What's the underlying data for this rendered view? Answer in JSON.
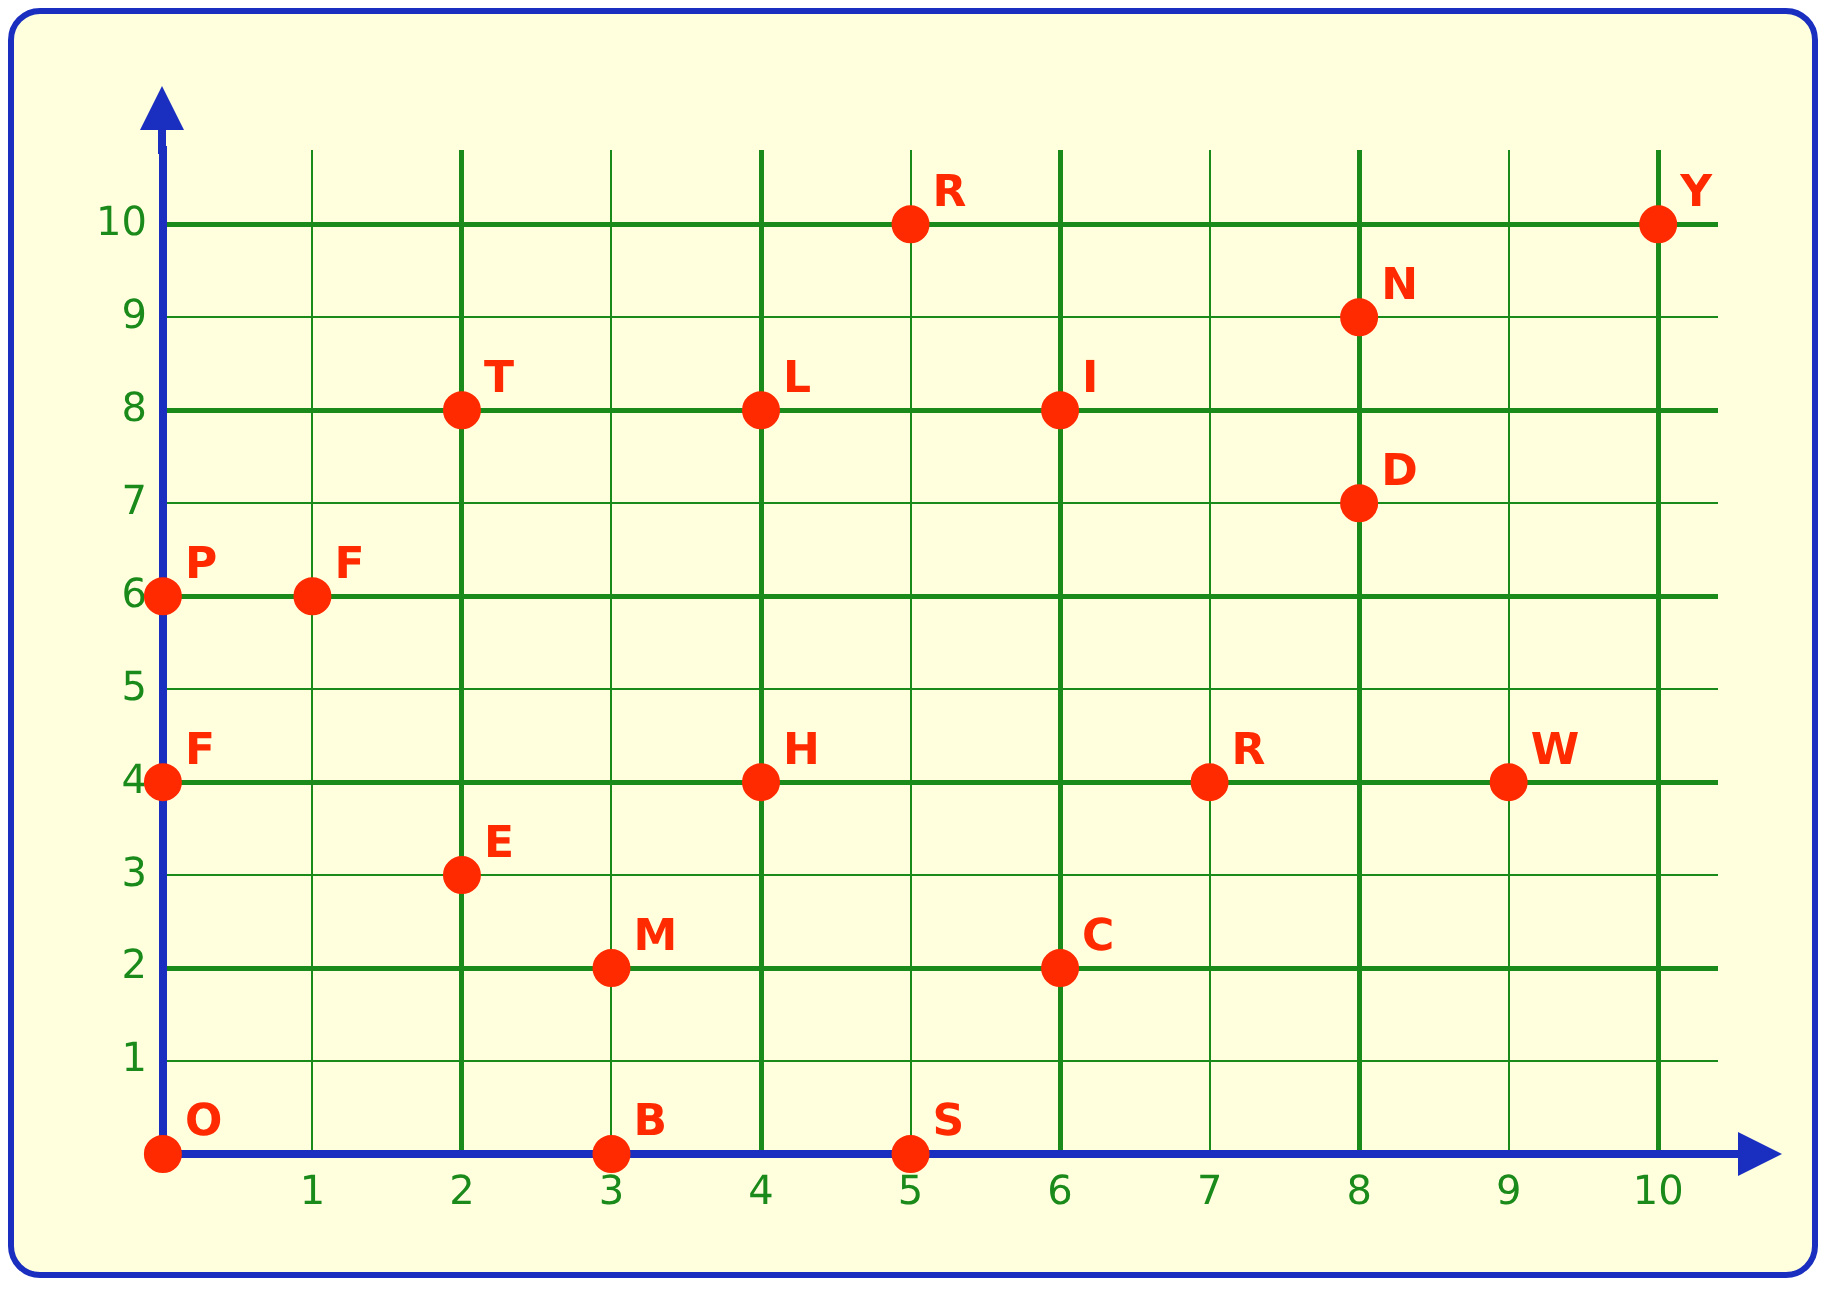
{
  "chart_data": {
    "type": "scatter",
    "x": [
      0,
      3,
      5,
      3,
      6,
      2,
      0,
      4,
      7,
      9,
      0,
      1,
      8,
      2,
      4,
      6,
      8,
      5,
      10
    ],
    "values": [
      0,
      0,
      0,
      2,
      2,
      3,
      4,
      4,
      4,
      4,
      6,
      6,
      7,
      8,
      8,
      8,
      9,
      10,
      10
    ],
    "color": "#ff2a00",
    "marker": "circle",
    "grid": true,
    "legend": false,
    "xlim": [
      0,
      10.4
    ],
    "ylim": [
      0,
      10.8
    ],
    "xticks": [
      1,
      2,
      3,
      4,
      5,
      6,
      7,
      8,
      9,
      10
    ],
    "yticks": [
      1,
      2,
      3,
      4,
      5,
      6,
      7,
      8,
      9,
      10
    ],
    "annotations": [
      {
        "text": "O",
        "x": 0,
        "y": 0
      },
      {
        "text": "B",
        "x": 3,
        "y": 0
      },
      {
        "text": "S",
        "x": 5,
        "y": 0
      },
      {
        "text": "M",
        "x": 3,
        "y": 2
      },
      {
        "text": "C",
        "x": 6,
        "y": 2
      },
      {
        "text": "E",
        "x": 2,
        "y": 3
      },
      {
        "text": "F",
        "x": 0,
        "y": 4
      },
      {
        "text": "H",
        "x": 4,
        "y": 4
      },
      {
        "text": "R",
        "x": 7,
        "y": 4
      },
      {
        "text": "W",
        "x": 9,
        "y": 4
      },
      {
        "text": "P",
        "x": 0,
        "y": 6
      },
      {
        "text": "F",
        "x": 1,
        "y": 6
      },
      {
        "text": "D",
        "x": 8,
        "y": 7
      },
      {
        "text": "T",
        "x": 2,
        "y": 8
      },
      {
        "text": "L",
        "x": 4,
        "y": 8
      },
      {
        "text": "I",
        "x": 6,
        "y": 8
      },
      {
        "text": "N",
        "x": 8,
        "y": 9
      },
      {
        "text": "R",
        "x": 5,
        "y": 10
      },
      {
        "text": "Y",
        "x": 10,
        "y": 10
      }
    ]
  }
}
